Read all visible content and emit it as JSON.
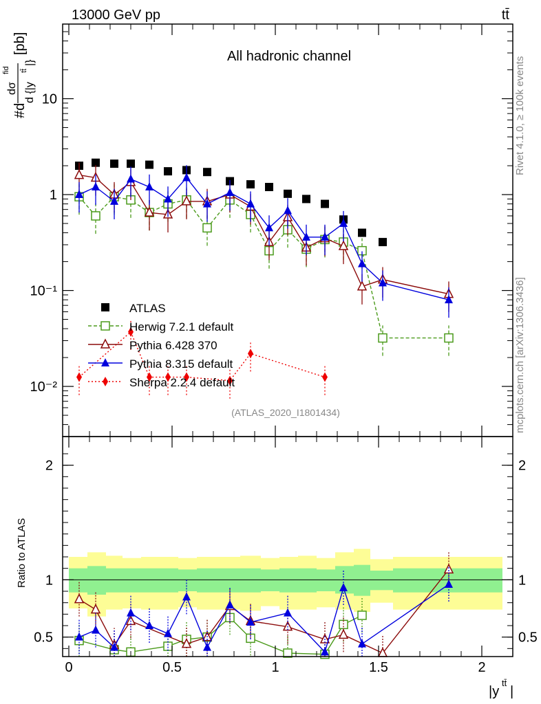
{
  "header": {
    "energy": "13000 GeV pp",
    "process": "tt̄",
    "channel": "All hadronic channel",
    "analysis_id": "(ATLAS_2020_I1801434)",
    "rivet": "Rivet 4.1.0, ≥ 100k events",
    "source": "mcplots.cern.ch [arXiv:1306.3436]"
  },
  "chart_data": [
    {
      "type": "scatter",
      "title": "All hadronic channel",
      "ylabel": "#d dσ^{fid} / d {|y^{tt̄}|} [pb]",
      "xlabel": "|y^{tt̄}|",
      "yscale": "log",
      "ylim": [
        0.003,
        60
      ],
      "xlim": [
        -0.03,
        2.15
      ],
      "y_ticks": [
        {
          "v": 0.01,
          "label": "10⁻²"
        },
        {
          "v": 0.1,
          "label": "10⁻¹"
        },
        {
          "v": 1,
          "label": "1"
        },
        {
          "v": 10,
          "label": "10"
        }
      ],
      "series": [
        {
          "name": "ATLAS",
          "color": "#000000",
          "marker": "square",
          "x": [
            0.05,
            0.13,
            0.22,
            0.3,
            0.39,
            0.48,
            0.57,
            0.67,
            0.78,
            0.88,
            0.97,
            1.06,
            1.15,
            1.24,
            1.33,
            1.42,
            1.52
          ],
          "y": [
            2.0,
            2.15,
            2.1,
            2.1,
            2.05,
            1.75,
            1.8,
            1.72,
            1.38,
            1.28,
            1.2,
            1.02,
            0.9,
            0.8,
            0.55,
            0.4,
            0.32
          ]
        },
        {
          "name": "Herwig 7.2.1 default",
          "color": "#4a9a1a",
          "marker": "open-square",
          "dash": "5,3",
          "x": [
            0.05,
            0.13,
            0.22,
            0.3,
            0.39,
            0.48,
            0.57,
            0.67,
            0.78,
            0.88,
            0.97,
            1.06,
            1.15,
            1.24,
            1.33,
            1.42,
            1.52,
            1.84
          ],
          "y": [
            0.95,
            0.6,
            0.95,
            0.88,
            0.65,
            0.8,
            0.88,
            0.45,
            0.88,
            0.62,
            0.26,
            0.43,
            0.27,
            0.34,
            0.32,
            0.26,
            0.032,
            0.032
          ]
        },
        {
          "name": "Pythia 6.428 370",
          "color": "#8b0a0a",
          "marker": "open-triangle",
          "x": [
            0.05,
            0.13,
            0.22,
            0.3,
            0.39,
            0.48,
            0.57,
            0.67,
            0.78,
            0.88,
            0.97,
            1.06,
            1.15,
            1.24,
            1.33,
            1.42,
            1.52,
            1.84
          ],
          "y": [
            1.6,
            1.5,
            1.0,
            1.35,
            0.65,
            0.62,
            0.85,
            0.85,
            1.0,
            0.75,
            0.32,
            0.58,
            0.28,
            0.35,
            0.29,
            0.11,
            0.13,
            0.092
          ]
        },
        {
          "name": "Pythia 8.315 default",
          "color": "#0000dd",
          "marker": "triangle",
          "x": [
            0.05,
            0.13,
            0.22,
            0.3,
            0.39,
            0.48,
            0.57,
            0.67,
            0.78,
            0.88,
            0.97,
            1.06,
            1.15,
            1.24,
            1.33,
            1.42,
            1.52,
            1.84
          ],
          "y": [
            1.0,
            1.2,
            0.85,
            1.45,
            1.2,
            0.9,
            1.5,
            0.8,
            1.05,
            0.8,
            0.45,
            0.68,
            0.36,
            0.36,
            0.5,
            0.19,
            0.12,
            0.08
          ]
        },
        {
          "name": "Sherpa 2.2.4 default",
          "color": "#ee0000",
          "marker": "diamond",
          "dash": "2,3",
          "x": [
            0.05,
            0.3,
            0.39,
            0.48,
            0.57,
            0.78,
            0.88,
            1.24
          ],
          "y": [
            0.0125,
            0.037,
            0.0125,
            0.0125,
            0.0125,
            0.0115,
            0.022,
            0.0125
          ]
        }
      ]
    },
    {
      "type": "scatter",
      "ylabel": "Ratio to ATLAS",
      "xlabel": "|y^{tt̄}|",
      "ylim": [
        0.33,
        2.25
      ],
      "xlim": [
        -0.03,
        2.15
      ],
      "y_ticks": [
        {
          "v": 0.5,
          "label": "0.5"
        },
        {
          "v": 1,
          "label": "1"
        },
        {
          "v": 2,
          "label": "2"
        }
      ],
      "x_ticks": [
        {
          "v": 0,
          "label": "0"
        },
        {
          "v": 0.5,
          "label": "0.5"
        },
        {
          "v": 1,
          "label": "1"
        },
        {
          "v": 1.5,
          "label": "1.5"
        },
        {
          "v": 2,
          "label": "2"
        }
      ],
      "series": [
        {
          "name": "Herwig 7.2.1 default",
          "color": "#4a9a1a",
          "marker": "open-square",
          "x": [
            0.05,
            0.22,
            0.3,
            0.48,
            0.57,
            0.67,
            0.78,
            0.88,
            1.06,
            1.24,
            1.33,
            1.42
          ],
          "y": [
            0.47,
            0.39,
            0.37,
            0.42,
            0.48,
            0.5,
            0.67,
            0.49,
            0.36,
            0.35,
            0.61,
            0.69
          ]
        },
        {
          "name": "Pythia 6.428 370",
          "color": "#8b0a0a",
          "marker": "open-triangle",
          "x": [
            0.05,
            0.13,
            0.22,
            0.3,
            0.57,
            0.67,
            0.78,
            0.88,
            1.06,
            1.24,
            1.33,
            1.52,
            1.84
          ],
          "y": [
            0.83,
            0.74,
            0.43,
            0.64,
            0.44,
            0.5,
            0.77,
            0.64,
            0.59,
            0.48,
            0.52,
            0.36,
            1.09
          ]
        },
        {
          "name": "Pythia 8.315 default",
          "color": "#0000dd",
          "marker": "triangle",
          "x": [
            0.05,
            0.13,
            0.22,
            0.3,
            0.39,
            0.48,
            0.57,
            0.67,
            0.78,
            0.88,
            1.06,
            1.24,
            1.33,
            1.42,
            1.84
          ],
          "y": [
            0.5,
            0.56,
            0.41,
            0.71,
            0.6,
            0.53,
            0.85,
            0.41,
            0.78,
            0.63,
            0.71,
            0.37,
            0.93,
            0.44,
            0.96
          ]
        }
      ],
      "bands": {
        "edges": [
          0,
          0.09,
          0.18,
          0.26,
          0.35,
          0.44,
          0.53,
          0.62,
          0.72,
          0.83,
          0.93,
          1.02,
          1.11,
          1.2,
          1.29,
          1.38,
          1.46,
          1.57,
          2.1
        ],
        "yellow_lo": [
          0.75,
          0.68,
          0.74,
          0.75,
          0.74,
          0.74,
          0.76,
          0.74,
          0.74,
          0.73,
          0.77,
          0.74,
          0.74,
          0.76,
          0.74,
          0.72,
          0.8,
          0.74
        ],
        "yellow_hi": [
          1.2,
          1.24,
          1.21,
          1.19,
          1.2,
          1.2,
          1.19,
          1.2,
          1.2,
          1.21,
          1.19,
          1.2,
          1.21,
          1.19,
          1.24,
          1.27,
          1.18,
          1.2
        ],
        "green_lo": [
          0.89,
          0.87,
          0.89,
          0.89,
          0.89,
          0.89,
          0.9,
          0.89,
          0.89,
          0.89,
          0.9,
          0.89,
          0.89,
          0.9,
          0.88,
          0.86,
          0.91,
          0.89
        ],
        "green_hi": [
          1.1,
          1.12,
          1.1,
          1.1,
          1.1,
          1.1,
          1.09,
          1.1,
          1.1,
          1.1,
          1.09,
          1.1,
          1.1,
          1.09,
          1.12,
          1.13,
          1.08,
          1.1
        ]
      }
    }
  ]
}
